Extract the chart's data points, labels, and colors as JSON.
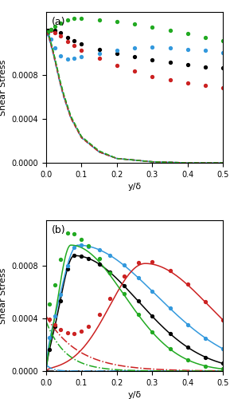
{
  "xlim": [
    0,
    0.5
  ],
  "ylim_a": [
    0,
    0.00138
  ],
  "ylim_b": [
    0,
    0.00115
  ],
  "xticks": [
    0.0,
    0.1,
    0.2,
    0.3,
    0.4,
    0.5
  ],
  "yticks_a": [
    0,
    0.0004,
    0.0008
  ],
  "yticks_b": [
    0,
    0.0004,
    0.0008
  ],
  "xlabel": "y/δ",
  "ylabel": "Shear Stress",
  "colors": {
    "black": "#000000",
    "blue": "#3399dd",
    "red": "#cc2222",
    "green": "#22aa22"
  },
  "panel_a_label": "(a)",
  "panel_b_label": "(b)"
}
